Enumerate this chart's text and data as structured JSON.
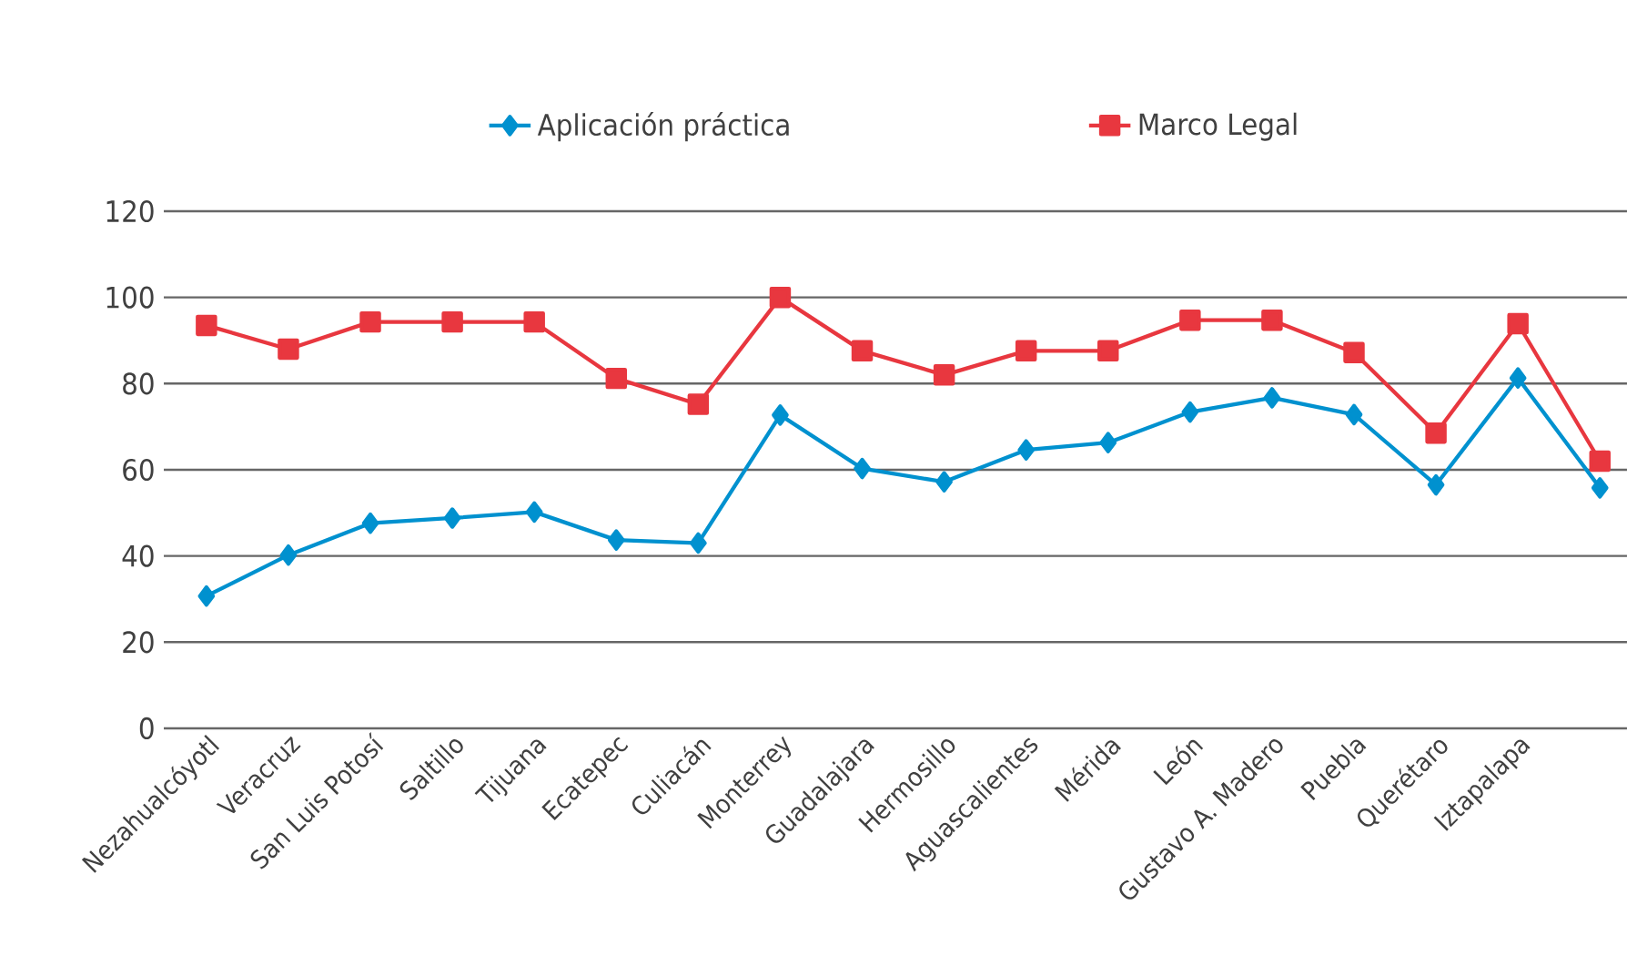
{
  "chart_data": {
    "type": "line",
    "categories": [
      "Nezahualcóyotl",
      "Veracruz",
      "San Luis Potosí",
      "Saltillo",
      "Tijuana",
      "Ecatepec",
      "Culiacán",
      "Monterrey",
      "Guadalajara",
      "Hermosillo",
      "Aguascalientes",
      "Mérida",
      "León",
      "Gustavo A. Madero",
      "Puebla",
      "Querétaro",
      "Iztapalapa",
      null
    ],
    "series": [
      {
        "name": "Aplicación práctica",
        "color": "#0091cf",
        "marker": "diamond",
        "values": [
          30.7,
          40.2,
          47.6,
          48.8,
          50.2,
          43.7,
          43,
          72.7,
          60.3,
          57.2,
          64.6,
          66.3,
          73.4,
          76.7,
          72.8,
          56.5,
          81.3,
          55.8
        ]
      },
      {
        "name": "Marco Legal",
        "color": "#e8373f",
        "marker": "square",
        "values": [
          93.5,
          88,
          94.3,
          94.3,
          94.3,
          81.2,
          75.2,
          100,
          87.6,
          82,
          87.6,
          87.6,
          94.7,
          94.7,
          87.2,
          68.5,
          93.9,
          62
        ]
      }
    ],
    "ylim": [
      0,
      120
    ],
    "yticks": [
      0,
      20,
      40,
      60,
      80,
      100,
      120
    ],
    "grid": "y",
    "legend": "top",
    "line_style": "solid"
  }
}
